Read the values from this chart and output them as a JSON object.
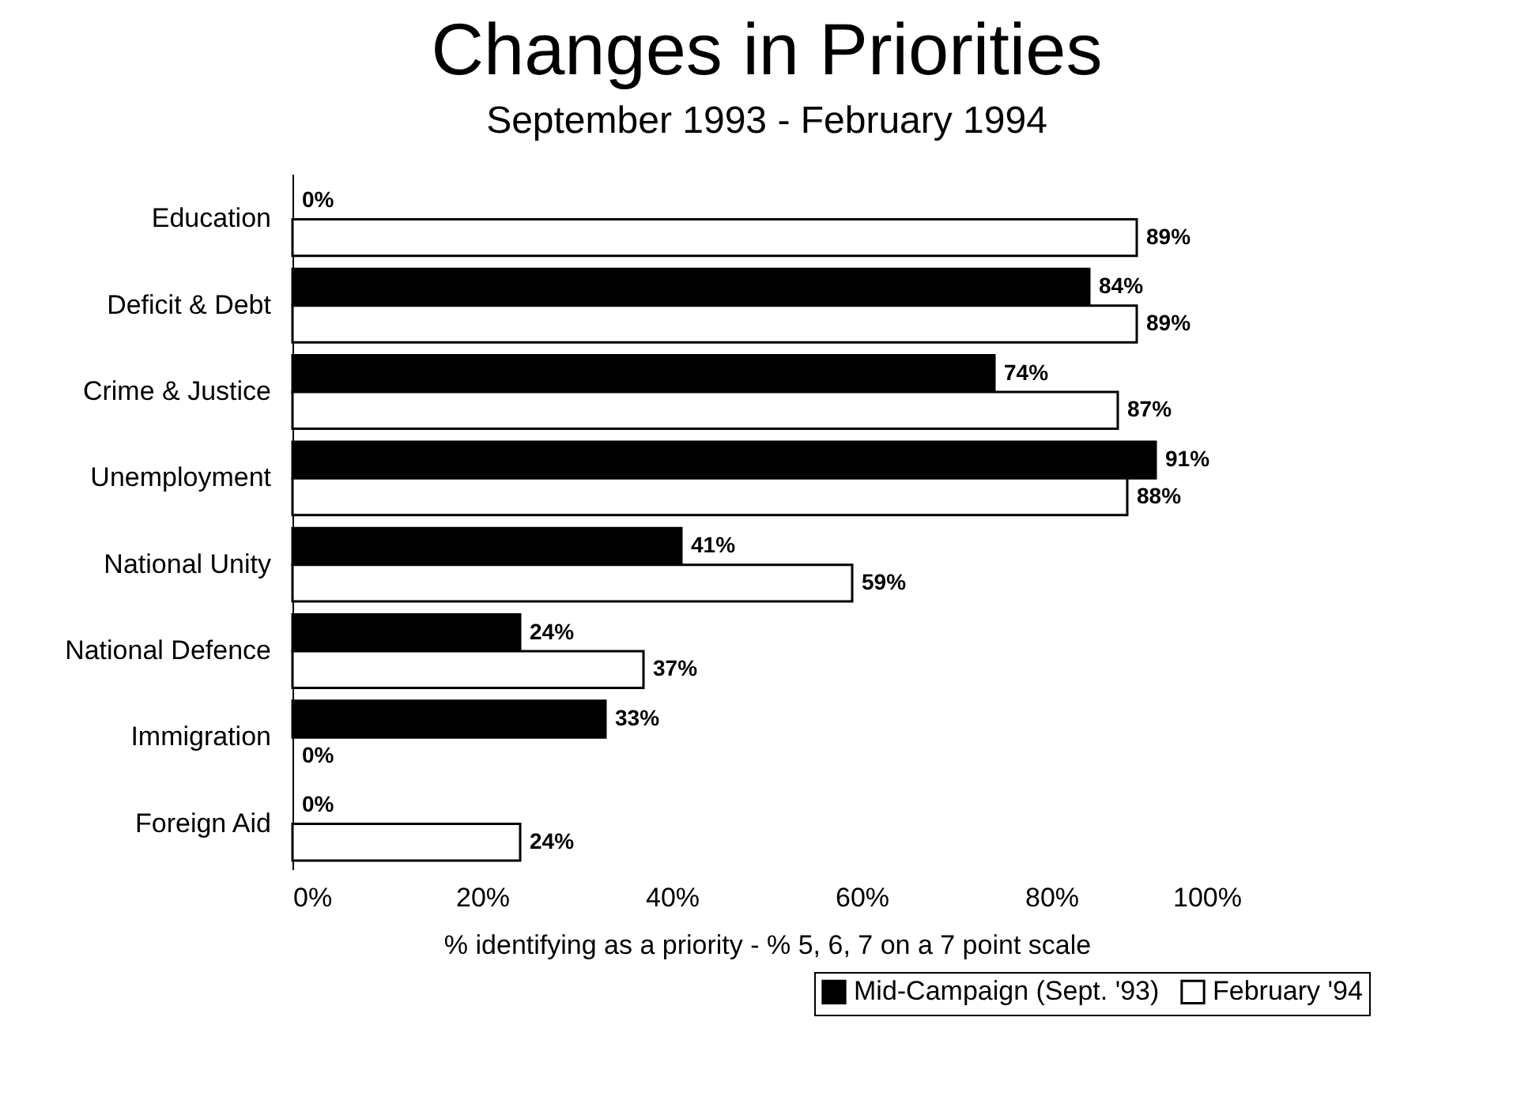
{
  "chart_data": {
    "type": "bar",
    "orientation": "horizontal",
    "title": "Changes in Priorities",
    "subtitle": "September 1993 - February 1994",
    "xlabel": "% identifying as a priority - % 5, 6, 7 on a 7 point scale",
    "categories": [
      "Education",
      "Deficit & Debt",
      "Crime & Justice",
      "Unemployment",
      "National Unity",
      "National Defence",
      "Immigration",
      "Foreign Aid"
    ],
    "series": [
      {
        "name": "Mid-Campaign (Sept. '93)",
        "color": "#000000",
        "values": [
          0,
          84,
          74,
          91,
          41,
          24,
          33,
          0
        ],
        "value_labels": [
          "0%",
          "84%",
          "74%",
          "91%",
          "41%",
          "24%",
          "33%",
          "0%"
        ]
      },
      {
        "name": "February '94",
        "color": "#ffffff",
        "values": [
          89,
          89,
          87,
          88,
          59,
          37,
          0,
          24
        ],
        "value_labels": [
          "89%",
          "89%",
          "87%",
          "88%",
          "59%",
          "37%",
          "0%",
          "24%"
        ]
      }
    ],
    "xlim": [
      0,
      100
    ],
    "xticks": [
      {
        "value": 0,
        "label": "0%"
      },
      {
        "value": 20,
        "label": "20%"
      },
      {
        "value": 40,
        "label": "40%"
      },
      {
        "value": 60,
        "label": "60%"
      },
      {
        "value": 80,
        "label": "80%"
      },
      {
        "value": 100,
        "label": "100%"
      }
    ],
    "grid": false,
    "legend": "bottom right"
  }
}
